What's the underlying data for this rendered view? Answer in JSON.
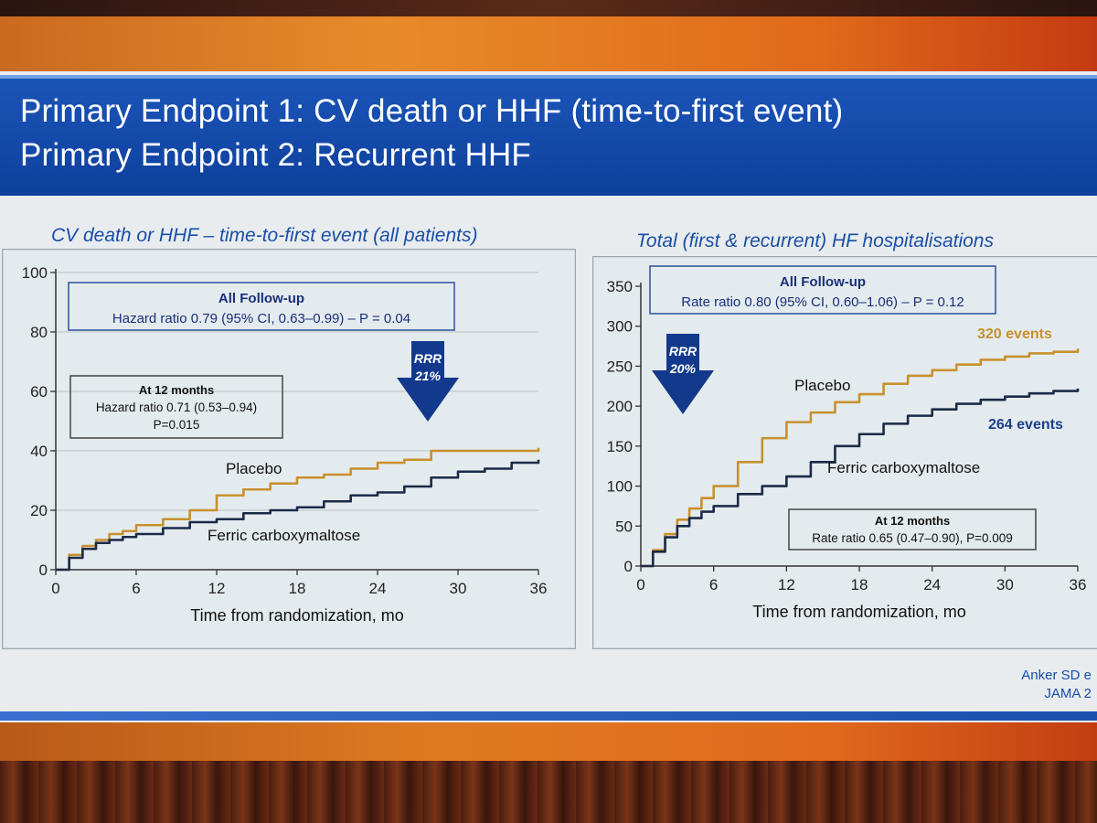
{
  "slide": {
    "title_line1": "Primary Endpoint 1:  CV death or HHF (time-to-first event)",
    "title_line2": "Primary Endpoint 2:  Recurrent HHF",
    "citation_line1": "Anker SD e",
    "citation_line2": "JAMA 2"
  },
  "colors": {
    "placebo": "#c8902e",
    "ferric": "#1a2a48",
    "arrow": "#12398c",
    "title_bar": "#1b55b8",
    "subtitle_text": "#1a4ea8"
  },
  "chart_data": [
    {
      "type": "line",
      "title": "CV death or HHF – time-to-first event (all patients)",
      "xlabel": "Time from randomization, mo",
      "ylabel": "",
      "xlim": [
        0,
        36
      ],
      "ylim": [
        0,
        100
      ],
      "xticks": [
        "0",
        "6",
        "12",
        "18",
        "24",
        "30",
        "36"
      ],
      "yticks": [
        "0",
        "20",
        "40",
        "60",
        "80",
        "100"
      ],
      "grid": true,
      "series": [
        {
          "name": "Placebo",
          "x": [
            0,
            1,
            2,
            3,
            4,
            5,
            6,
            8,
            10,
            12,
            14,
            16,
            18,
            20,
            22,
            24,
            26,
            28,
            30,
            32,
            34,
            36
          ],
          "y": [
            0,
            5,
            8,
            10,
            12,
            13,
            15,
            17,
            20,
            25,
            27,
            29,
            31,
            32,
            34,
            36,
            37,
            40,
            40,
            40,
            40,
            41
          ]
        },
        {
          "name": "Ferric carboxymaltose",
          "x": [
            0,
            1,
            2,
            3,
            4,
            5,
            6,
            8,
            10,
            12,
            14,
            16,
            18,
            20,
            22,
            24,
            26,
            28,
            30,
            32,
            34,
            36
          ],
          "y": [
            0,
            4,
            7,
            9,
            10,
            11,
            12,
            14,
            16,
            17,
            19,
            20,
            21,
            23,
            25,
            26,
            28,
            31,
            33,
            34,
            36,
            37
          ]
        }
      ],
      "annotations": {
        "all_followup_title": "All Follow-up",
        "all_followup_text": "Hazard ratio 0.79 (95% CI, 0.63–0.99) – P = 0.04",
        "twelve_month_title": "At 12 months",
        "twelve_month_line1": "Hazard ratio 0.71 (0.53–0.94)",
        "twelve_month_line2": "P=0.015",
        "rrr_label": "RRR",
        "rrr_value": "21%",
        "placebo_label": "Placebo",
        "ferric_label": "Ferric carboxymaltose"
      }
    },
    {
      "type": "line",
      "title": "Total (first & recurrent) HF hospitalisations",
      "xlabel": "Time from randomization, mo",
      "ylabel": "",
      "xlim": [
        0,
        36
      ],
      "ylim": [
        0,
        350
      ],
      "xticks": [
        "0",
        "6",
        "12",
        "18",
        "24",
        "30",
        "36"
      ],
      "yticks": [
        "0",
        "50",
        "100",
        "150",
        "200",
        "250",
        "300",
        "350"
      ],
      "grid": false,
      "series": [
        {
          "name": "Placebo",
          "x": [
            0,
            1,
            2,
            3,
            4,
            5,
            6,
            8,
            10,
            12,
            14,
            16,
            18,
            20,
            22,
            24,
            26,
            28,
            30,
            32,
            34,
            36
          ],
          "y": [
            0,
            20,
            40,
            58,
            72,
            85,
            100,
            130,
            160,
            180,
            192,
            205,
            215,
            228,
            238,
            245,
            252,
            258,
            262,
            266,
            268,
            272
          ]
        },
        {
          "name": "Ferric carboxymaltose",
          "x": [
            0,
            1,
            2,
            3,
            4,
            5,
            6,
            8,
            10,
            12,
            14,
            16,
            18,
            20,
            22,
            24,
            26,
            28,
            30,
            32,
            34,
            36
          ],
          "y": [
            0,
            18,
            36,
            50,
            60,
            68,
            75,
            90,
            100,
            112,
            130,
            150,
            165,
            178,
            188,
            196,
            203,
            208,
            212,
            216,
            219,
            222
          ]
        }
      ],
      "annotations": {
        "all_followup_title": "All Follow-up",
        "all_followup_text": "Rate ratio 0.80 (95% CI, 0.60–1.06) – P = 0.12",
        "twelve_month_title": "At 12 months",
        "twelve_month_text": "Rate ratio 0.65 (0.47–0.90), P=0.009",
        "rrr_label": "RRR",
        "rrr_value": "20%",
        "placebo_label": "Placebo",
        "ferric_label": "Ferric carboxymaltose",
        "placebo_events": "320 events",
        "ferric_events": "264 events"
      }
    }
  ]
}
